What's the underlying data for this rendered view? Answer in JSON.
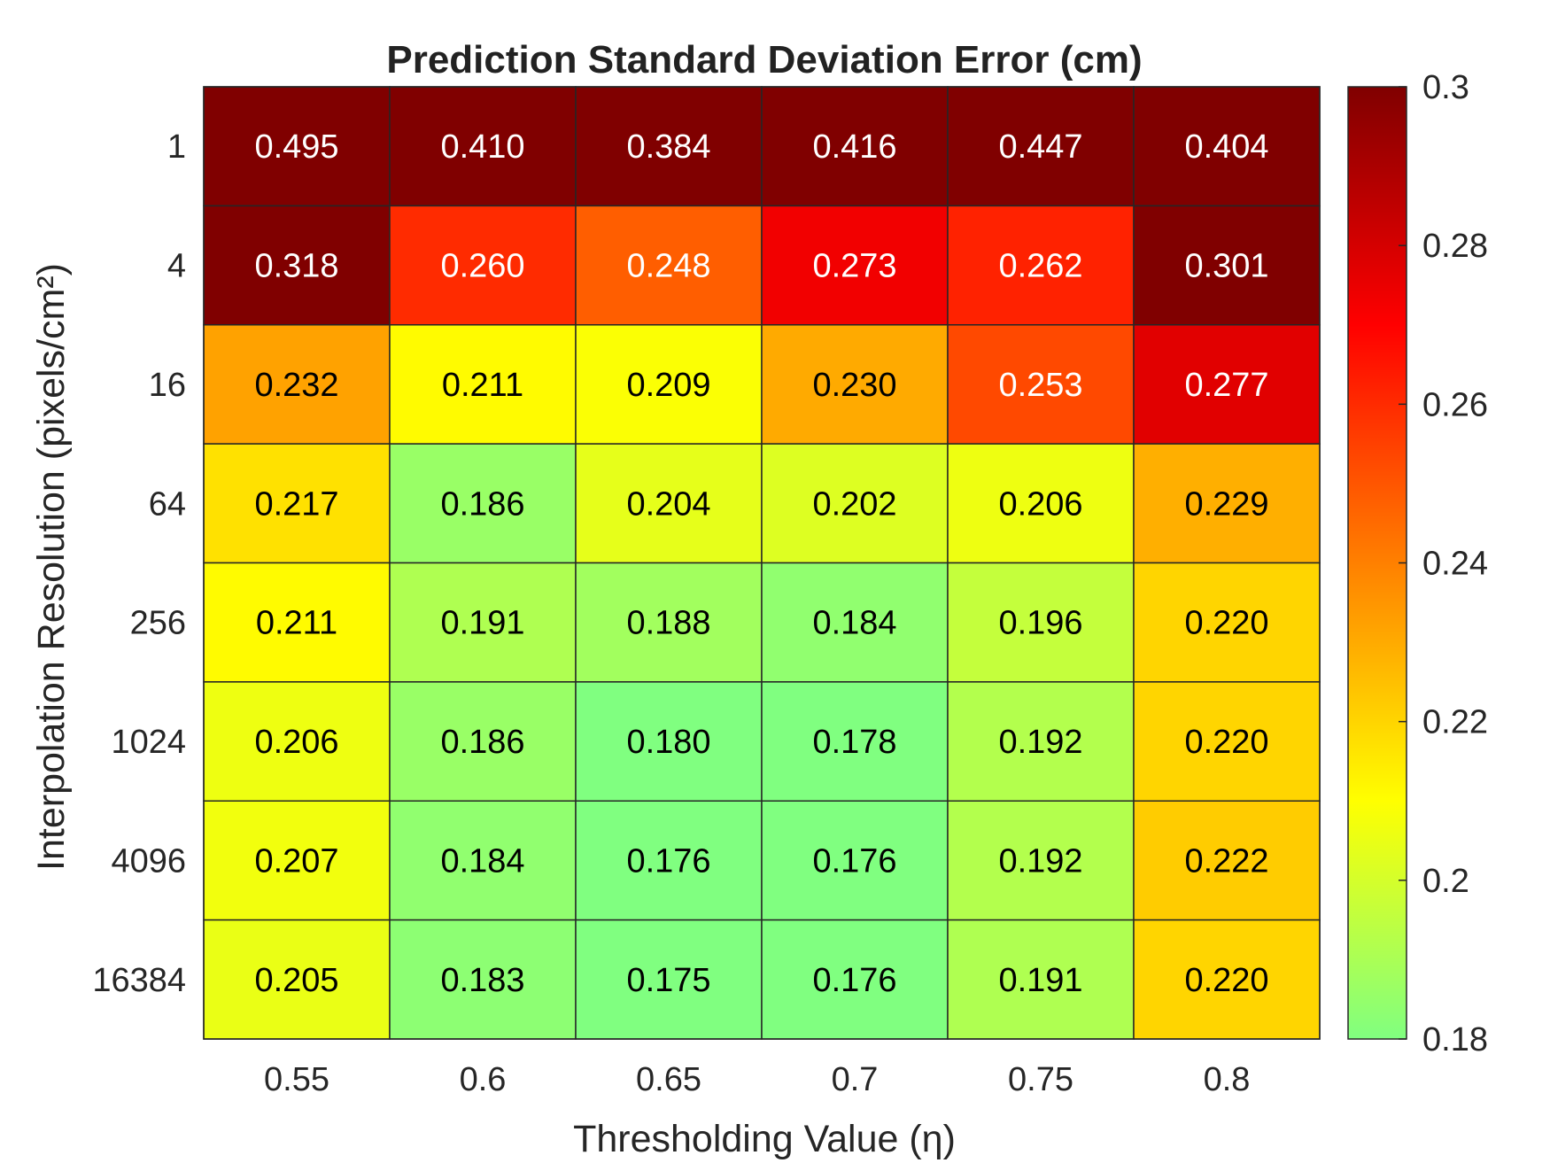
{
  "chart_data": {
    "type": "heatmap",
    "title": "Prediction Standard Deviation Error (cm)",
    "xlabel": "Thresholding Value (η)",
    "ylabel": "Interpolation Resolution (pixels/cm²)",
    "x_categories": [
      "0.55",
      "0.6",
      "0.65",
      "0.7",
      "0.75",
      "0.8"
    ],
    "y_categories": [
      "1",
      "4",
      "16",
      "64",
      "256",
      "1024",
      "4096",
      "16384"
    ],
    "values": [
      [
        0.495,
        0.41,
        0.384,
        0.416,
        0.447,
        0.404
      ],
      [
        0.318,
        0.26,
        0.248,
        0.273,
        0.262,
        0.301
      ],
      [
        0.232,
        0.211,
        0.209,
        0.23,
        0.253,
        0.277
      ],
      [
        0.217,
        0.186,
        0.204,
        0.202,
        0.206,
        0.229
      ],
      [
        0.211,
        0.191,
        0.188,
        0.184,
        0.196,
        0.22
      ],
      [
        0.206,
        0.186,
        0.18,
        0.178,
        0.192,
        0.22
      ],
      [
        0.207,
        0.184,
        0.176,
        0.176,
        0.192,
        0.222
      ],
      [
        0.205,
        0.183,
        0.175,
        0.176,
        0.191,
        0.22
      ]
    ],
    "value_labels": [
      [
        "0.495",
        "0.410",
        "0.384",
        "0.416",
        "0.447",
        "0.404"
      ],
      [
        "0.318",
        "0.260",
        "0.248",
        "0.273",
        "0.262",
        "0.301"
      ],
      [
        "0.232",
        "0.211",
        "0.209",
        "0.230",
        "0.253",
        "0.277"
      ],
      [
        "0.217",
        "0.186",
        "0.204",
        "0.202",
        "0.206",
        "0.229"
      ],
      [
        "0.211",
        "0.191",
        "0.188",
        "0.184",
        "0.196",
        "0.220"
      ],
      [
        "0.206",
        "0.186",
        "0.180",
        "0.178",
        "0.192",
        "0.220"
      ],
      [
        "0.207",
        "0.184",
        "0.176",
        "0.176",
        "0.192",
        "0.222"
      ],
      [
        "0.205",
        "0.183",
        "0.175",
        "0.176",
        "0.191",
        "0.220"
      ]
    ],
    "color_range": [
      0.18,
      0.3
    ],
    "colorbar_ticks": [
      "0.18",
      "0.2",
      "0.22",
      "0.24",
      "0.26",
      "0.28",
      "0.3"
    ],
    "colormap_stops": [
      "#80ff80",
      "#ffff00",
      "#ff8000",
      "#ff0000",
      "#800000"
    ],
    "grid": true
  }
}
